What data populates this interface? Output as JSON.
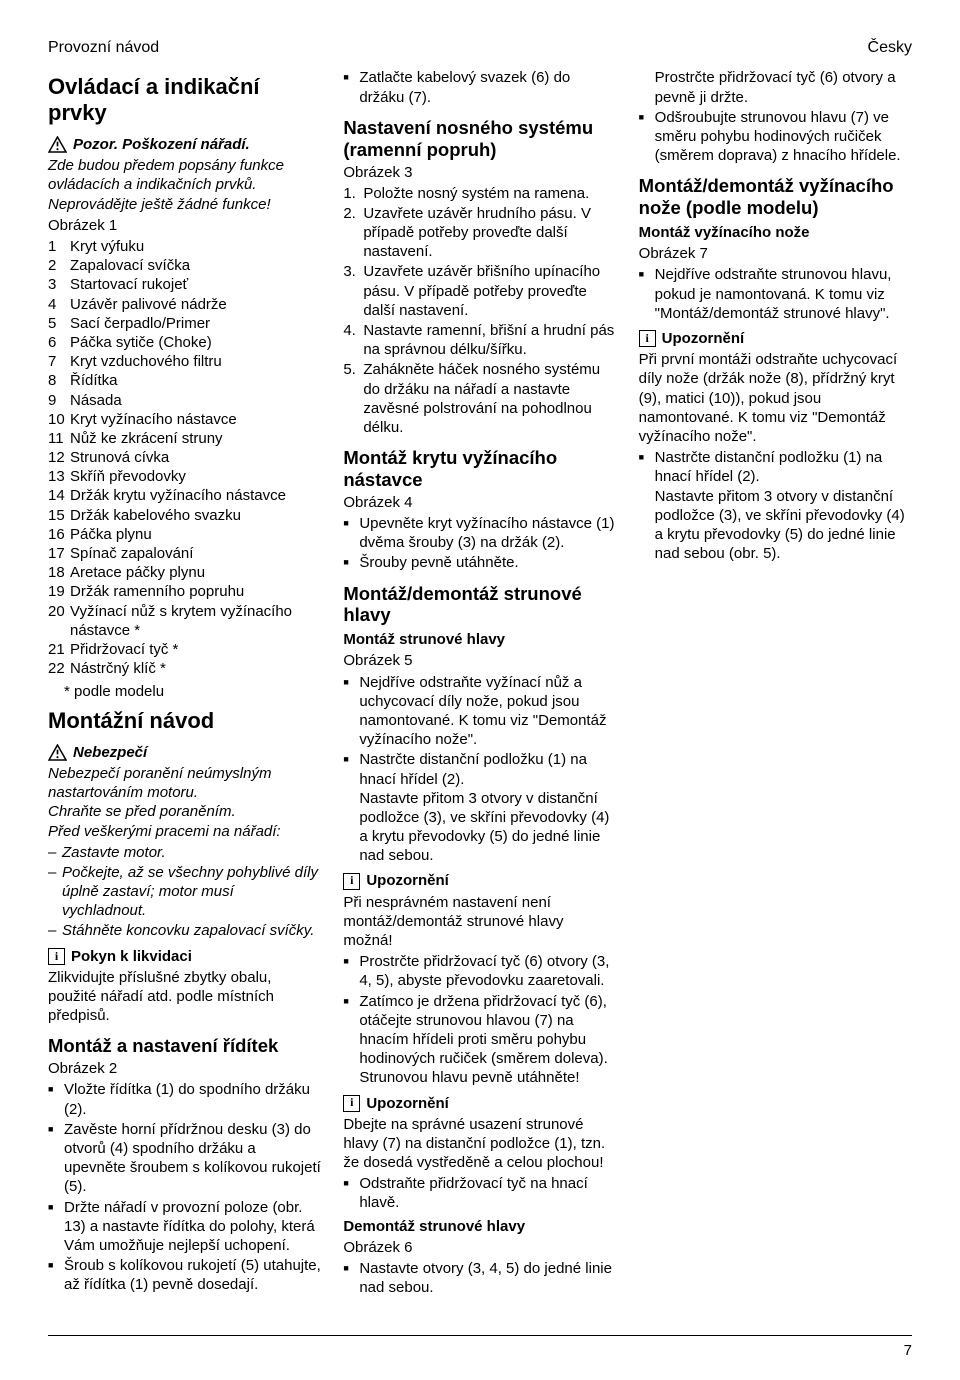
{
  "header": {
    "left": "Provozní návod",
    "right": "Česky"
  },
  "h1a": "Ovládací a indikační prvky",
  "pozor": {
    "label": "Pozor. Poškození nářadí."
  },
  "intro1": "Zde budou předem popsány funkce ovládacích a indikačních prvků. Neprovádějte ještě žádné funkce!",
  "fig1": "Obrázek 1",
  "parts": [
    "Kryt výfuku",
    "Zapalovací svíčka",
    "Startovací rukojeť",
    "Uzávěr palivové nádrže",
    "Sací čerpadlo/Primer",
    "Páčka sytiče (Choke)",
    "Kryt vzduchového filtru",
    "Řídítka",
    "Násada",
    "Kryt vyžínacího nástavce",
    "Nůž ke zkrácení struny",
    "Strunová cívka",
    "Skříň převodovky",
    "Držák krytu vyžínacího nástavce",
    "Držák kabelového svazku",
    "Páčka plynu",
    "Spínač zapalování",
    "Aretace páčky plynu",
    "Držák ramenního popruhu",
    "Vyžínací nůž s krytem vyžínacího nástavce *",
    "Přidržovací tyč *",
    "Nástrčný klíč *"
  ],
  "footnote": "* podle modelu",
  "h1b": "Montážní návod",
  "nebezpeci": {
    "label": "Nebezpečí"
  },
  "neb_text": "Nebezpečí poranění neúmyslným nastartováním motoru.\nChraňte se před poraněním.\nPřed veškerými pracemi na nářadí:",
  "neb_list": [
    "Zastavte motor.",
    "Počkejte, až se všechny pohyblivé díly úplně zastaví; motor musí vychladnout.",
    "Stáhněte koncovku zapalovací svíčky."
  ],
  "pokyn": {
    "label": "Pokyn k likvidaci"
  },
  "pokyn_text": "Zlikvidujte příslušné zbytky obalu, použité nářadí atd. podle místních předpisů.",
  "h2a": "Montáž a nastavení řídítek",
  "fig2": "Obrázek 2",
  "riditka": [
    "Vložte řídítka (1) do spodního držáku (2).",
    "Zavěste horní přídržnou desku (3) do otvorů (4) spodního držáku a upevněte šroubem s kolíkovou rukojetí (5).",
    "Držte nářadí v provozní poloze (obr. 13) a nastavte řídítka do polohy, která Vám umožňuje nejlepší uchopení.",
    "Šroub s kolíkovou rukojetí (5) utahujte, až řídítka (1) pevně dosedají.",
    "Zatlačte kabelový svazek (6) do držáku (7)."
  ],
  "h2b": "Nastavení nosného systému (ramenní popruh)",
  "fig3": "Obrázek 3",
  "nosny": [
    "Položte nosný systém na ramena.",
    "Uzavřete uzávěr hrudního pásu. V případě potřeby proveďte další nastavení.",
    "Uzavřete uzávěr břišního upínacího pásu. V případě potřeby proveďte další nastavení.",
    "Nastavte ramenní, břišní a hrudní pás na správnou délku/šířku.",
    "Zahákněte háček nosného systému do držáku na nářadí a nastavte zavěsné polstrování na pohodlnou délku."
  ],
  "h2c": "Montáž krytu vyžínacího nástavce",
  "fig4": "Obrázek 4",
  "kryt": [
    "Upevněte kryt vyžínacího nástavce (1) dvěma šrouby (3) na držák (2).",
    "Šrouby pevně utáhněte."
  ],
  "h2d": "Montáž/demontáž strunové hlavy",
  "h3a": "Montáž strunové hlavy",
  "fig5": "Obrázek 5",
  "strun1": [
    "Nejdříve odstraňte vyžínací nůž a uchycovací díly nože, pokud jsou namontované. K tomu viz \"Demontáž vyžínacího nože\".",
    "Nastrčte distanční podložku (1) na hnací hřídel (2).\nNastavte přitom 3 otvory v distanční podložce (3), ve skříni převodovky (4) a krytu převodovky (5) do jedné linie nad sebou."
  ],
  "upoz1": {
    "label": "Upozornění"
  },
  "upoz1_text": "Při nesprávném nastavení není montáž/demontáž strunové hlavy možná!",
  "strun2": [
    "Prostrčte přidržovací tyč (6) otvory (3, 4, 5), abyste převodovku zaaretovali.",
    "Zatímco je držena přidržovací tyč (6), otáčejte strunovou hlavou (7) na hnacím hřídeli proti směru pohybu hodinových ručiček (směrem doleva).\nStrunovou hlavu pevně utáhněte!"
  ],
  "upoz2": {
    "label": "Upozornění"
  },
  "upoz2_text": "Dbejte na správné usazení strunové hlavy (7) na distanční podložce (1), tzn. že dosedá vystředěně a celou plochou!",
  "strun3": [
    "Odstraňte přidržovací tyč na hnací hlavě."
  ],
  "h3b": "Demontáž strunové hlavy",
  "fig6": "Obrázek 6",
  "demont": [
    "Nastavte otvory (3, 4, 5) do jedné linie nad sebou.\nProstrčte přidržovací tyč (6) otvory a pevně ji držte.",
    "Odšroubujte strunovou hlavu (7) ve směru pohybu hodinových ručiček (směrem doprava) z hnacího hřídele."
  ],
  "h2e": "Montáž/demontáž vyžínacího nože (podle modelu)",
  "h3c": "Montáž vyžínacího nože",
  "fig7": "Obrázek 7",
  "noz1": [
    "Nejdříve odstraňte strunovou hlavu, pokud je namontovaná. K tomu viz \"Montáž/demontáž strunové hlavy\"."
  ],
  "upoz3": {
    "label": "Upozornění"
  },
  "upoz3_text": "Při první montáži odstraňte uchycovací díly nože (držák nože (8), přídržný kryt (9), matici (10)), pokud jsou namontované. K tomu viz \"Demontáž vyžínacího nože\".",
  "noz2": [
    "Nastrčte distanční podložku (1) na hnací hřídel (2).\nNastavte přitom 3 otvory v distanční podložce (3), ve skříni převodovky (4) a krytu převodovky (5) do jedné linie nad sebou (obr. 5)."
  ],
  "page": "7"
}
